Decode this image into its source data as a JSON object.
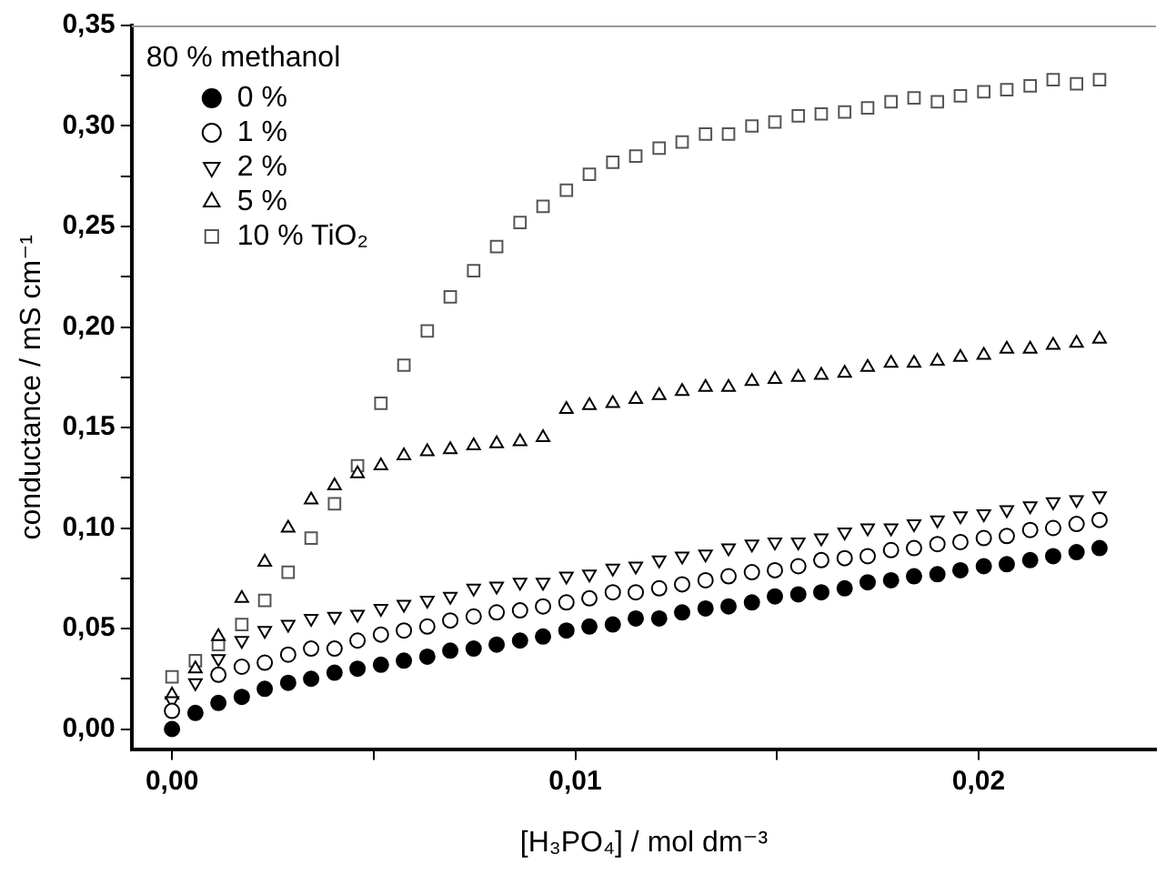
{
  "chart_data": {
    "type": "scatter",
    "xlabel": "[H₃PO₄] / mol dm⁻³",
    "ylabel": "conductance / mS cm⁻¹",
    "legend_title": "80 % methanol",
    "legend": "top left",
    "grid": false,
    "x": [
      0,
      0.00058,
      0.00115,
      0.00173,
      0.0023,
      0.00288,
      0.00345,
      0.00403,
      0.0046,
      0.00518,
      0.00575,
      0.00633,
      0.0069,
      0.00748,
      0.00805,
      0.00863,
      0.0092,
      0.00978,
      0.01035,
      0.01093,
      0.0115,
      0.01208,
      0.01265,
      0.01323,
      0.0138,
      0.01438,
      0.01495,
      0.01553,
      0.0161,
      0.01668,
      0.01725,
      0.01783,
      0.0184,
      0.01898,
      0.01955,
      0.02013,
      0.0207,
      0.02128,
      0.02185,
      0.02243,
      0.023
    ],
    "xlim": [
      -0.001,
      0.0244
    ],
    "ylim": [
      -0.01,
      0.35
    ],
    "xticks": [
      {
        "value": 0,
        "label": "0,00"
      },
      {
        "value": 0.005,
        "label": null
      },
      {
        "value": 0.01,
        "label": "0,01"
      },
      {
        "value": 0.015,
        "label": null
      },
      {
        "value": 0.02,
        "label": "0,02"
      }
    ],
    "yticks": [
      {
        "value": 0,
        "label": "0,00"
      },
      {
        "value": 0.025,
        "label": null
      },
      {
        "value": 0.05,
        "label": "0,05"
      },
      {
        "value": 0.075,
        "label": null
      },
      {
        "value": 0.1,
        "label": "0,10"
      },
      {
        "value": 0.125,
        "label": null
      },
      {
        "value": 0.15,
        "label": "0,15"
      },
      {
        "value": 0.175,
        "label": null
      },
      {
        "value": 0.2,
        "label": "0,20"
      },
      {
        "value": 0.225,
        "label": null
      },
      {
        "value": 0.25,
        "label": "0,25"
      },
      {
        "value": 0.275,
        "label": null
      },
      {
        "value": 0.3,
        "label": "0,30"
      },
      {
        "value": 0.325,
        "label": null
      },
      {
        "value": 0.35,
        "label": "0,35"
      }
    ],
    "series": [
      {
        "name": "0 %",
        "color": "#000000",
        "marker": "circle",
        "values": [
          0,
          0.008,
          0.013,
          0.016,
          0.02,
          0.023,
          0.025,
          0.028,
          0.03,
          0.032,
          0.034,
          0.036,
          0.039,
          0.04,
          0.042,
          0.044,
          0.046,
          0.049,
          0.051,
          0.052,
          0.055,
          0.055,
          0.058,
          0.06,
          0.061,
          0.063,
          0.066,
          0.067,
          0.068,
          0.07,
          0.073,
          0.074,
          0.076,
          0.077,
          0.079,
          0.081,
          0.082,
          0.084,
          0.086,
          0.088,
          0.09
        ]
      },
      {
        "name": "1 %",
        "color": "#000000",
        "marker": "circle-open",
        "values": [
          0.009,
          null,
          0.027,
          0.031,
          0.033,
          0.037,
          0.04,
          0.04,
          0.044,
          0.047,
          0.049,
          0.051,
          0.054,
          0.056,
          0.058,
          0.059,
          0.061,
          0.063,
          0.065,
          0.068,
          0.068,
          0.07,
          0.072,
          0.074,
          0.076,
          0.078,
          0.079,
          0.081,
          0.084,
          0.085,
          0.086,
          0.089,
          0.09,
          0.092,
          0.093,
          0.095,
          0.096,
          0.099,
          0.1,
          0.102,
          0.104
        ]
      },
      {
        "name": "2 %",
        "color": "#000000",
        "marker": "triangle-down",
        "values": [
          0.014,
          0.023,
          0.035,
          0.044,
          0.049,
          0.052,
          0.055,
          0.056,
          0.057,
          0.06,
          0.062,
          0.064,
          0.066,
          0.07,
          0.071,
          0.073,
          0.073,
          0.076,
          0.077,
          0.08,
          0.081,
          0.084,
          0.086,
          0.087,
          0.09,
          0.092,
          0.093,
          0.093,
          0.095,
          0.098,
          0.1,
          0.1,
          0.102,
          0.104,
          0.106,
          0.107,
          0.109,
          0.111,
          0.113,
          0.114,
          0.116
        ]
      },
      {
        "name": "5 %",
        "color": "#000000",
        "marker": "triangle",
        "values": [
          0.017,
          0.03,
          0.046,
          0.065,
          0.083,
          0.1,
          0.114,
          0.121,
          0.127,
          0.131,
          0.136,
          0.138,
          0.139,
          0.141,
          0.142,
          0.143,
          0.145,
          0.159,
          0.161,
          0.162,
          0.164,
          0.166,
          0.168,
          0.17,
          0.17,
          0.173,
          0.174,
          0.175,
          0.176,
          0.177,
          0.18,
          0.182,
          0.182,
          0.183,
          0.185,
          0.186,
          0.189,
          0.189,
          0.191,
          0.192,
          0.194
        ]
      },
      {
        "name": "10 % TiO₂",
        "color": "#555555",
        "marker": "square",
        "values": [
          0.026,
          0.034,
          0.042,
          0.052,
          0.064,
          0.078,
          0.095,
          0.112,
          0.131,
          0.162,
          0.181,
          0.198,
          0.215,
          0.228,
          0.24,
          0.252,
          0.26,
          0.268,
          0.276,
          0.282,
          0.285,
          0.289,
          0.292,
          0.296,
          0.296,
          0.3,
          0.302,
          0.305,
          0.306,
          0.307,
          0.309,
          0.312,
          0.314,
          0.312,
          0.315,
          0.317,
          0.318,
          0.32,
          0.323,
          0.321,
          0.323
        ]
      }
    ]
  }
}
